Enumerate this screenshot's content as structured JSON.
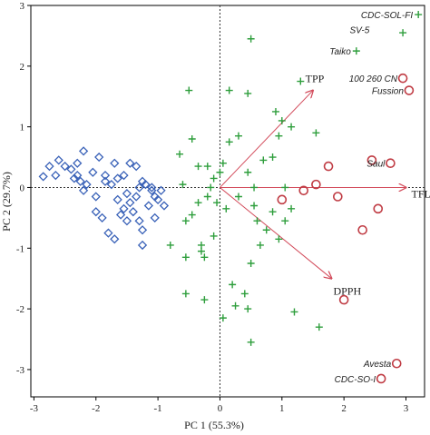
{
  "chart_data": {
    "type": "scatter",
    "title": "",
    "xlabel": "PC 1 (55.3%)",
    "ylabel": "PC 2 (29.7%)",
    "xlim": [
      -3.05,
      3.3
    ],
    "ylim": [
      -3.45,
      3.0
    ],
    "xticks": [
      -3,
      -2,
      -1,
      0,
      1,
      2,
      3
    ],
    "yticks": [
      3,
      2,
      1,
      0,
      -1,
      -2,
      -3
    ],
    "grid": false,
    "reference_lines": "dotted lines at x = 0 and y = 0",
    "colors": {
      "diamond": "#3a62b8",
      "plus": "#2e9e3c",
      "circle": "#c03c44",
      "vector": "#d24a5a"
    },
    "series": [
      {
        "marker": "diamond",
        "x": [
          -2.75,
          -2.85,
          -2.65,
          -2.6,
          -2.3,
          -2.5,
          -2.4,
          -2.35,
          -2.3,
          -2.25,
          -2.05,
          -2.2,
          -2.15,
          -2.0,
          -1.75,
          -1.65,
          -1.55,
          -1.85,
          -1.7,
          -1.45,
          -1.35,
          -1.25,
          -1.2,
          -1.3,
          -1.1,
          -1.05,
          -1.15,
          -1.05,
          -1.55,
          -1.35,
          -1.5,
          -1.45,
          -1.6,
          -1.3,
          -1.25,
          -2.0,
          -1.9,
          -1.8,
          -1.7,
          -1.5,
          -1.4,
          -1.0,
          -0.9,
          -0.95,
          -1.85,
          -2.2,
          -1.95,
          -1.65,
          -1.25,
          -1.1
        ],
        "y": [
          0.35,
          0.18,
          0.2,
          0.45,
          0.4,
          0.35,
          0.3,
          0.15,
          0.2,
          0.1,
          0.25,
          -0.05,
          0.05,
          -0.15,
          0.05,
          0.15,
          0.2,
          0.1,
          0.4,
          0.4,
          0.35,
          0.1,
          0.05,
          0.0,
          0.0,
          -0.15,
          -0.3,
          -0.5,
          -0.35,
          -0.15,
          -0.1,
          -0.25,
          -0.45,
          -0.55,
          -0.7,
          -0.4,
          -0.5,
          -0.75,
          -0.85,
          -0.55,
          -0.4,
          -0.2,
          -0.3,
          -0.05,
          0.2,
          0.6,
          0.5,
          -0.2,
          -0.95,
          -0.05
        ]
      },
      {
        "marker": "plus",
        "x": [
          0.5,
          -0.5,
          -0.45,
          0.15,
          0.45,
          1.3,
          1.0,
          0.95,
          0.85,
          0.7,
          0.45,
          0.55,
          1.05,
          0.3,
          0.15,
          0.05,
          0.0,
          -0.1,
          -0.2,
          -0.35,
          -0.6,
          -0.15,
          -0.2,
          -0.35,
          -0.45,
          0.3,
          0.55,
          0.6,
          0.85,
          1.05,
          1.15,
          0.75,
          0.65,
          0.95,
          -0.05,
          0.1,
          0.5,
          -0.1,
          -0.3,
          -0.55,
          -0.25,
          -0.55,
          -0.25,
          0.25,
          0.45,
          0.05,
          0.5,
          1.2,
          1.6,
          0.4,
          0.2,
          -0.3,
          -0.55,
          -0.8,
          -0.65,
          0.9,
          1.15,
          1.55,
          2.2,
          2.95,
          3.2
        ],
        "y": [
          2.45,
          1.6,
          0.8,
          1.6,
          1.55,
          1.75,
          1.1,
          0.85,
          0.5,
          0.45,
          0.25,
          0.0,
          0.0,
          0.85,
          0.75,
          0.4,
          0.25,
          0.15,
          0.35,
          0.35,
          0.05,
          0.0,
          -0.15,
          -0.25,
          -0.45,
          -0.15,
          -0.3,
          -0.55,
          -0.4,
          -0.55,
          -0.35,
          -0.7,
          -0.95,
          -0.85,
          -0.25,
          -0.35,
          -1.25,
          -0.8,
          -0.95,
          -1.15,
          -1.15,
          -1.75,
          -1.85,
          -1.95,
          -2.0,
          -2.15,
          -2.55,
          -2.05,
          -2.3,
          -1.75,
          -1.6,
          -1.05,
          -0.55,
          -0.95,
          0.55,
          1.25,
          1.0,
          0.9,
          2.25,
          2.55,
          2.85
        ]
      },
      {
        "marker": "circle",
        "x": [
          2.95,
          3.05,
          2.75,
          1.75,
          2.45,
          1.55,
          1.35,
          1.9,
          2.55,
          1.0,
          2.3,
          2.85,
          2.6,
          2.0
        ],
        "y": [
          1.8,
          1.6,
          0.4,
          0.35,
          0.45,
          0.05,
          -0.05,
          -0.15,
          -0.35,
          -0.2,
          -0.7,
          -2.9,
          -3.15,
          -1.85
        ]
      }
    ],
    "vectors": [
      {
        "label": "TPP",
        "x": 1.5,
        "y": 1.6
      },
      {
        "label": "TFL",
        "x": 3.0,
        "y": 0.0
      },
      {
        "label": "DPPH",
        "x": 1.8,
        "y": -1.5
      }
    ],
    "annotations": [
      {
        "text": "CDC-SOL-FI",
        "x": 3.2,
        "y": 2.85
      },
      {
        "text": "SV-5",
        "x": 2.5,
        "y": 2.6
      },
      {
        "text": "Taiko",
        "x": 2.2,
        "y": 2.25
      },
      {
        "text": "100 260 CN",
        "x": 2.95,
        "y": 1.8
      },
      {
        "text": "Fussion",
        "x": 3.05,
        "y": 1.6
      },
      {
        "text": "Saul",
        "x": 2.75,
        "y": 0.4
      },
      {
        "text": "Avesta",
        "x": 2.85,
        "y": -2.9
      },
      {
        "text": "CDC-SO-I",
        "x": 2.6,
        "y": -3.15
      }
    ]
  }
}
